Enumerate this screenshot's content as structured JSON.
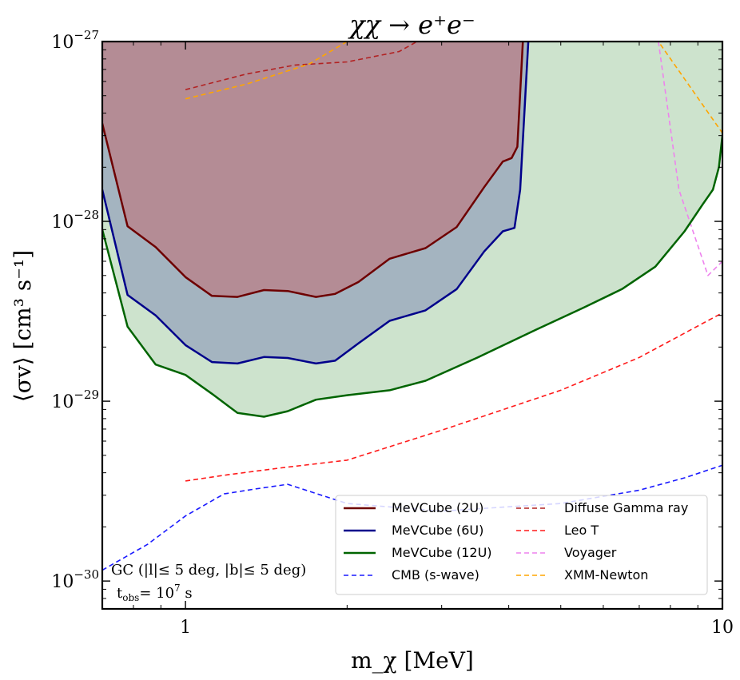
{
  "chart_data": {
    "type": "line",
    "title": "χχ → e⁺e⁻",
    "xlabel": "m_χ [MeV]",
    "ylabel": "⟨σv⟩ [cm³ s⁻¹]",
    "xscale": "log",
    "yscale": "log",
    "xlim": [
      0.7,
      10
    ],
    "ylim": [
      7e-31,
      1e-27
    ],
    "x_ticks": [
      {
        "value": 1,
        "label": "1"
      },
      {
        "value": 10,
        "label": "10"
      }
    ],
    "y_ticks": [
      {
        "value": 1e-30,
        "base": "10",
        "exp": "−30"
      },
      {
        "value": 1e-29,
        "base": "10",
        "exp": "−29"
      },
      {
        "value": 1e-28,
        "base": "10",
        "exp": "−28"
      },
      {
        "value": 1e-27,
        "base": "10",
        "exp": "−27"
      }
    ],
    "legend_position": "bottom-right",
    "series": [
      {
        "name": "MeVCube (12U)",
        "color": "#006400",
        "fill": "#cde3cd",
        "style": "solid",
        "x": [
          0.7,
          0.78,
          0.88,
          1.0,
          1.12,
          1.25,
          1.4,
          1.55,
          1.75,
          2.0,
          2.4,
          2.8,
          3.5,
          4.5,
          5.5,
          6.5,
          7.5,
          8.5,
          9.2,
          9.6,
          9.85,
          10.0
        ],
        "y": [
          9e-29,
          2.6e-29,
          1.6e-29,
          1.4e-29,
          1.1e-29,
          8.6e-30,
          8.2e-30,
          8.8e-30,
          1.02e-29,
          1.08e-29,
          1.15e-29,
          1.3e-29,
          1.75e-29,
          2.5e-29,
          3.3e-29,
          4.2e-29,
          5.6e-29,
          8.8e-29,
          1.25e-28,
          1.5e-28,
          2e-28,
          3e-28
        ]
      },
      {
        "name": "MeVCube (6U)",
        "color": "#00008b",
        "fill": "#a4b4c0",
        "style": "solid",
        "x": [
          0.7,
          0.78,
          0.88,
          1.0,
          1.12,
          1.25,
          1.4,
          1.55,
          1.75,
          1.9,
          2.1,
          2.4,
          2.8,
          3.2,
          3.6,
          3.9,
          4.1,
          4.2,
          4.35
        ],
        "y": [
          1.5e-28,
          3.9e-29,
          3e-29,
          2.05e-29,
          1.65e-29,
          1.62e-29,
          1.76e-29,
          1.74e-29,
          1.62e-29,
          1.68e-29,
          2.1e-29,
          2.8e-29,
          3.2e-29,
          4.2e-29,
          6.8e-29,
          8.8e-29,
          9.2e-29,
          1.5e-28,
          1e-27
        ]
      },
      {
        "name": "MeVCube (2U)",
        "color": "#6e0000",
        "fill": "#b48c95",
        "style": "solid",
        "x": [
          0.7,
          0.78,
          0.88,
          1.0,
          1.12,
          1.25,
          1.4,
          1.55,
          1.75,
          1.9,
          2.1,
          2.4,
          2.8,
          3.2,
          3.6,
          3.9,
          4.05,
          4.15,
          4.25
        ],
        "y": [
          3.5e-28,
          9.4e-29,
          7.2e-29,
          4.9e-29,
          3.85e-29,
          3.8e-29,
          4.15e-29,
          4.1e-29,
          3.8e-29,
          3.95e-29,
          4.6e-29,
          6.2e-29,
          7.1e-29,
          9.3e-29,
          1.55e-28,
          2.15e-28,
          2.25e-28,
          2.6e-28,
          1e-27
        ]
      },
      {
        "name": "CMB (s-wave)",
        "color": "#1a1aff",
        "style": "dashed",
        "x": [
          0.7,
          0.85,
          1.0,
          1.18,
          1.35,
          1.55,
          2.0,
          3.0,
          5.0,
          7.0,
          8.5,
          10.0
        ],
        "y": [
          1.15e-30,
          1.6e-30,
          2.3e-30,
          3.05e-30,
          3.25e-30,
          3.45e-30,
          2.7e-30,
          2.45e-30,
          2.7e-30,
          3.2e-30,
          3.75e-30,
          4.4e-30
        ]
      },
      {
        "name": "Diffuse Gamma ray",
        "color": "#b22222",
        "style": "dashed",
        "x": [
          1.0,
          1.3,
          1.6,
          2.0,
          2.5,
          2.7
        ],
        "y": [
          5.4e-28,
          6.6e-28,
          7.4e-28,
          7.7e-28,
          8.8e-28,
          1e-27
        ]
      },
      {
        "name": "Leo T",
        "color": "#ff1a1a",
        "style": "dashed",
        "x": [
          1.0,
          1.2,
          1.5,
          2.0,
          3.0,
          5.0,
          7.0,
          10.0
        ],
        "y": [
          3.6e-30,
          3.9e-30,
          4.25e-30,
          4.7e-30,
          6.9e-30,
          1.15e-29,
          1.75e-29,
          3.1e-29
        ]
      },
      {
        "name": "Voyager",
        "color": "#ee82ee",
        "style": "dashed",
        "x": [
          7.6,
          8.3,
          9.4,
          10.0
        ],
        "y": [
          1e-27,
          1.5e-28,
          5e-29,
          6e-29
        ]
      },
      {
        "name": "XMM-Newton",
        "color": "#ffa500",
        "style": "dashed",
        "x": [
          1.0,
          1.3,
          1.7,
          2.0,
          7.6,
          10.0
        ],
        "y": [
          4.8e-28,
          5.8e-28,
          7.5e-28,
          1e-27,
          1e-27,
          3.1e-28
        ]
      }
    ],
    "legend_left": [
      "MeVCube (2U)",
      "MeVCube (6U)",
      "MeVCube (12U)",
      "CMB (s-wave)"
    ],
    "legend_right": [
      "Diffuse Gamma ray",
      "Leo T",
      "Voyager",
      "XMM-Newton"
    ],
    "annotation": {
      "line1": "GC (|l|≤ 5 deg, |b|≤ 5 deg)",
      "line2_prefix": "t",
      "line2_sub": "obs",
      "line2_mid": "= 10",
      "line2_sup": "7",
      "line2_suffix": " s"
    }
  }
}
